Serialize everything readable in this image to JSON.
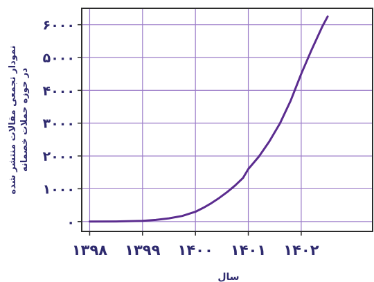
{
  "chart_data": {
    "type": "line",
    "title": "",
    "xlabel": "سال",
    "ylabel_lines": [
      "نمودار تجمعی مقالات منتشر شده",
      "در حوزه حملات خصمانه"
    ],
    "xlim": [
      1397.85,
      1403.35
    ],
    "ylim": [
      -300,
      6500
    ],
    "x_ticks": [
      1398,
      1399,
      1400,
      1401,
      1402
    ],
    "x_tick_labels": [
      "۱۳۹۸",
      "۱۳۹۹",
      "۱۴۰۰",
      "۱۴۰۱",
      "۱۴۰۲"
    ],
    "y_ticks": [
      0,
      1000,
      2000,
      3000,
      4000,
      5000,
      6000
    ],
    "y_tick_labels": [
      "۰",
      "۱۰۰۰",
      "۲۰۰۰",
      "۳۰۰۰",
      "۴۰۰۰",
      "۵۰۰۰",
      "۶۰۰۰"
    ],
    "grid": true,
    "colors": {
      "line": "#5b2c8f",
      "grid": "#9b7cc8",
      "frame": "#2b2b2b",
      "text": "#2e2a6e"
    },
    "series": [
      {
        "x": [
          1398.0,
          1398.5,
          1399.0,
          1399.25,
          1399.5,
          1399.75,
          1400.0,
          1400.15,
          1400.3,
          1400.45,
          1400.6,
          1400.75,
          1400.9,
          1401.0,
          1401.2,
          1401.4,
          1401.6,
          1401.8,
          1402.0,
          1402.2,
          1402.4,
          1402.5
        ],
        "y": [
          0,
          5,
          20,
          50,
          100,
          170,
          300,
          420,
          560,
          720,
          900,
          1100,
          1330,
          1600,
          1980,
          2450,
          3000,
          3680,
          4500,
          5250,
          5950,
          6250
        ]
      }
    ]
  }
}
